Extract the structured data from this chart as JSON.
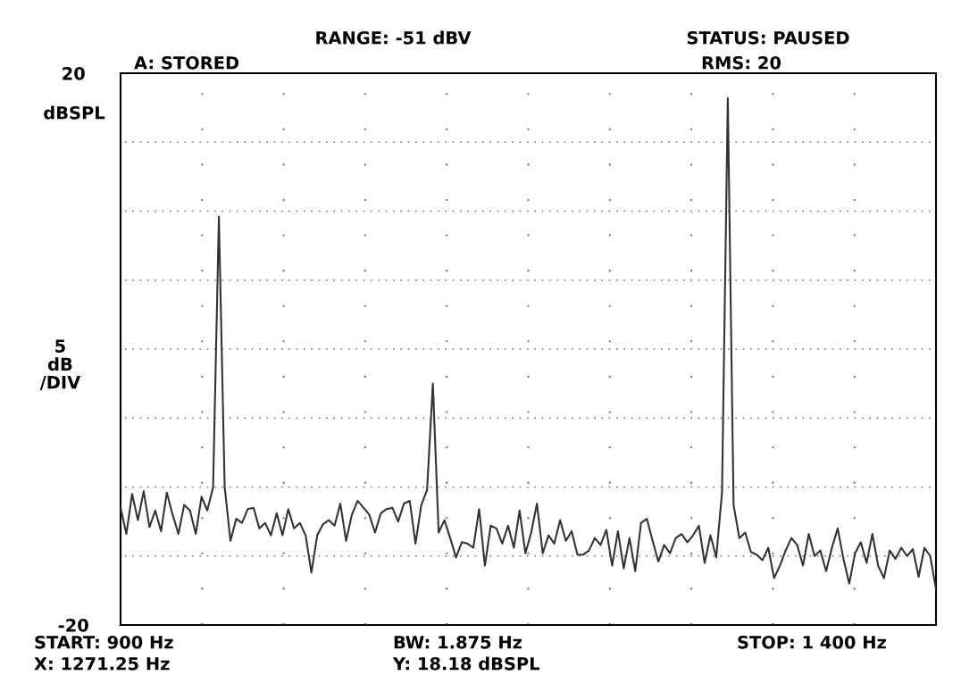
{
  "chart_data": {
    "type": "line",
    "ylabel": "5\ndB\n/DIV",
    "annotations": [
      "RANGE: -51 dBV",
      "STATUS: PAUSED",
      "A: STORED",
      "RMS: 20",
      "dBSPL",
      "START: 900 Hz",
      "BW: 1.875 Hz",
      "STOP: 1 400 Hz",
      "X: 1271.25 Hz",
      "Y: 18.18 dBSPL"
    ],
    "categories": [
      null,
      null,
      null,
      null,
      null,
      null,
      null,
      null,
      null,
      null,
      null,
      null,
      null,
      null,
      null,
      null,
      null,
      null,
      null,
      null,
      null,
      null,
      null,
      null,
      null,
      null,
      null,
      null,
      null,
      null,
      null,
      null,
      null,
      null,
      null,
      null,
      null,
      null,
      null,
      null,
      null,
      null,
      null,
      null,
      null,
      null,
      null,
      null,
      null,
      null,
      null,
      null,
      null,
      null,
      null,
      null,
      null,
      null,
      null,
      null,
      null,
      null,
      null,
      null,
      null,
      null,
      null,
      null,
      null,
      null,
      null,
      null,
      null,
      null,
      null,
      null,
      null,
      null,
      null,
      null,
      null,
      null,
      null,
      null,
      null,
      null,
      null,
      null,
      null,
      null,
      null,
      null,
      null,
      null,
      null,
      null,
      null,
      null,
      null,
      null,
      null,
      null,
      null,
      null,
      null,
      null,
      null,
      null,
      null,
      null,
      null,
      null,
      null,
      null,
      null,
      null,
      null,
      null,
      null,
      null,
      null,
      null,
      null,
      null,
      null,
      null,
      null,
      null,
      null,
      null,
      null,
      null,
      null,
      null,
      null,
      null,
      null,
      null,
      null,
      null,
      null,
      null
    ],
    "ylim": [
      -20,
      20
    ],
    "yticks": [
      {
        "value": 20,
        "label": "20"
      },
      {
        "value": 15,
        "label": null
      },
      {
        "value": 10,
        "label": null
      },
      {
        "value": 5,
        "label": null
      },
      {
        "value": 0,
        "label": null
      },
      {
        "value": -5,
        "label": null
      },
      {
        "value": -10,
        "label": null
      },
      {
        "value": -15,
        "label": null
      },
      {
        "value": -20,
        "label": "-20"
      }
    ],
    "grid": true,
    "marker": "none",
    "line_style": "solid",
    "series": [
      {
        "color": "#333333",
        "values": [
          -11.5,
          -13.4,
          -10.5,
          -12.4,
          -10.3,
          -12.9,
          -11.7,
          -13.2,
          -10.4,
          -12.0,
          -13.4,
          -11.3,
          -11.7,
          -13.4,
          -10.7,
          -11.7,
          -10.0,
          9.6,
          -10.0,
          -13.9,
          -12.3,
          -12.6,
          -11.6,
          -11.5,
          -13.0,
          -12.6,
          -13.5,
          -11.9,
          -13.5,
          -11.6,
          -13.0,
          -12.6,
          -13.5,
          -16.2,
          -13.5,
          -12.7,
          -12.4,
          -12.8,
          -11.2,
          -13.9,
          -12.0,
          -11.0,
          -11.5,
          -12.0,
          -13.3,
          -11.9,
          -11.6,
          -11.5,
          -12.5,
          -11.2,
          -11.0,
          -14.1,
          -11.3,
          -10.2,
          -2.5,
          -13.3,
          -12.4,
          -13.7,
          -15.1,
          -14.0,
          -14.1,
          -14.4,
          -11.6,
          -15.7,
          -12.8,
          -13.0,
          -14.1,
          -12.8,
          -14.4,
          -11.7,
          -14.8,
          -13.3,
          -11.2,
          -14.8,
          -13.5,
          -14.1,
          -12.4,
          -13.9,
          -13.2,
          -14.9,
          -14.9,
          -14.6,
          -13.7,
          -14.2,
          -13.1,
          -15.7,
          -13.2,
          -15.9,
          -13.7,
          -16.1,
          -12.6,
          -12.3,
          -13.9,
          -15.4,
          -14.2,
          -14.8,
          -13.7,
          -13.4,
          -14.0,
          -13.5,
          -12.8,
          -15.5,
          -13.5,
          -15.1,
          -10.4,
          18.2,
          -11.3,
          -13.7,
          -13.3,
          -14.7,
          -14.9,
          -15.3,
          -14.4,
          -16.6,
          -15.7,
          -14.6,
          -13.7,
          -14.2,
          -15.7,
          -13.4,
          -15.0,
          -14.6,
          -16.1,
          -14.4,
          -13.0,
          -15.2,
          -17.0,
          -14.8,
          -14.0,
          -15.5,
          -13.4,
          -15.7,
          -16.6,
          -14.6,
          -15.2,
          -14.4,
          -15.0,
          -14.5,
          -16.5,
          -14.4,
          -15.0,
          -17.4
        ]
      }
    ]
  }
}
